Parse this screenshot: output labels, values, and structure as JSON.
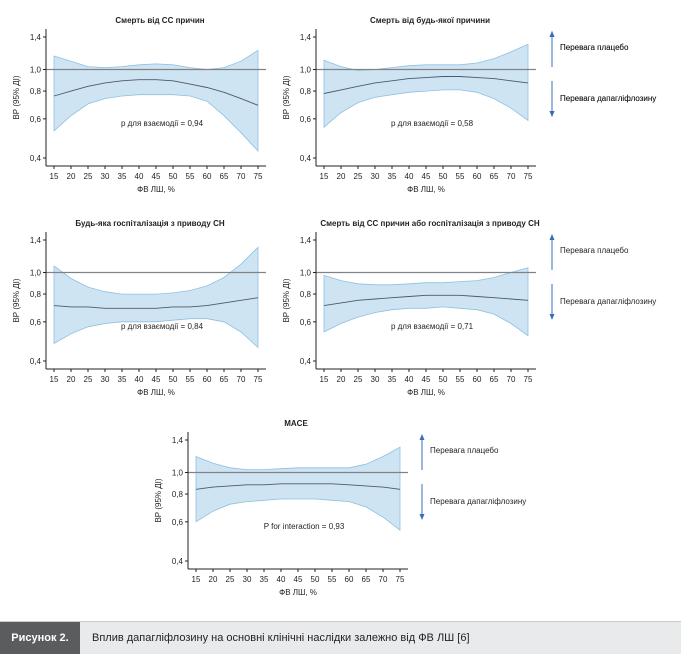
{
  "chart_data": [
    {
      "type": "line",
      "title": "Смерть від СС причин",
      "xlabel": "ФВ ЛШ, %",
      "ylabel": "ВР (95% ДІ)",
      "xlim": [
        15,
        75
      ],
      "ylim": [
        0.4,
        1.4
      ],
      "yscale": "log",
      "xticks": [
        "15",
        "20",
        "25",
        "30",
        "35",
        "40",
        "45",
        "50",
        "55",
        "60",
        "65",
        "70",
        "75"
      ],
      "yticks": [
        "0,4",
        "0,6",
        "0,8",
        "1,0",
        "1,4"
      ],
      "reference_line": 1.0,
      "annotation": "р для взаємодії = 0,94",
      "legend": {
        "up": "Перевага плацебо",
        "down": "Перевага дапагліфлозину"
      },
      "x": [
        15,
        20,
        25,
        30,
        35,
        40,
        45,
        50,
        55,
        60,
        65,
        70,
        75
      ],
      "estimate": [
        0.76,
        0.8,
        0.84,
        0.87,
        0.89,
        0.9,
        0.9,
        0.89,
        0.86,
        0.83,
        0.79,
        0.74,
        0.69
      ],
      "lower": [
        0.53,
        0.62,
        0.7,
        0.74,
        0.76,
        0.77,
        0.77,
        0.77,
        0.76,
        0.72,
        0.62,
        0.52,
        0.43
      ],
      "upper": [
        1.15,
        1.09,
        1.03,
        1.02,
        1.03,
        1.05,
        1.06,
        1.05,
        1.02,
        1.0,
        1.02,
        1.09,
        1.22
      ]
    },
    {
      "type": "line",
      "title": "Смерть від будь-якої причини",
      "xlabel": "ФВ ЛШ, %",
      "ylabel": "ВР (95% ДІ)",
      "xlim": [
        15,
        75
      ],
      "ylim": [
        0.4,
        1.4
      ],
      "yscale": "log",
      "xticks": [
        "15",
        "20",
        "25",
        "30",
        "35",
        "40",
        "45",
        "50",
        "55",
        "60",
        "65",
        "70",
        "75"
      ],
      "yticks": [
        "0,4",
        "0,6",
        "0,8",
        "1,0",
        "1,4"
      ],
      "reference_line": 1.0,
      "annotation": "р для взаємодії = 0,58",
      "legend": {
        "up": "Перевага плацебо",
        "down": "Перевага дапагліфлозину"
      },
      "x": [
        15,
        20,
        25,
        30,
        35,
        40,
        45,
        50,
        55,
        60,
        65,
        70,
        75
      ],
      "estimate": [
        0.78,
        0.81,
        0.84,
        0.87,
        0.89,
        0.91,
        0.92,
        0.93,
        0.93,
        0.92,
        0.91,
        0.89,
        0.87
      ],
      "lower": [
        0.55,
        0.64,
        0.71,
        0.75,
        0.77,
        0.79,
        0.8,
        0.81,
        0.81,
        0.79,
        0.74,
        0.67,
        0.59
      ],
      "upper": [
        1.1,
        1.03,
        0.99,
        1.0,
        1.02,
        1.04,
        1.05,
        1.05,
        1.05,
        1.07,
        1.12,
        1.2,
        1.3
      ]
    },
    {
      "type": "line",
      "title": "Будь-яка госпіталізація з приводу СН",
      "xlabel": "ФВ ЛШ, %",
      "ylabel": "ВР (95% ДІ)",
      "xlim": [
        15,
        75
      ],
      "ylim": [
        0.4,
        1.4
      ],
      "yscale": "log",
      "xticks": [
        "15",
        "20",
        "25",
        "30",
        "35",
        "40",
        "45",
        "50",
        "55",
        "60",
        "65",
        "70",
        "75"
      ],
      "yticks": [
        "0,4",
        "0,6",
        "0,8",
        "1,0",
        "1,4"
      ],
      "reference_line": 1.0,
      "annotation": "р для взаємодії = 0,84",
      "x": [
        15,
        20,
        25,
        30,
        35,
        40,
        45,
        50,
        55,
        60,
        65,
        70,
        75
      ],
      "estimate": [
        0.71,
        0.7,
        0.7,
        0.69,
        0.69,
        0.69,
        0.69,
        0.7,
        0.7,
        0.71,
        0.73,
        0.75,
        0.77
      ],
      "lower": [
        0.48,
        0.53,
        0.57,
        0.59,
        0.6,
        0.6,
        0.6,
        0.61,
        0.62,
        0.62,
        0.6,
        0.54,
        0.46
      ],
      "upper": [
        1.07,
        0.94,
        0.86,
        0.82,
        0.8,
        0.8,
        0.8,
        0.81,
        0.83,
        0.87,
        0.95,
        1.09,
        1.3
      ]
    },
    {
      "type": "line",
      "title": "Смерть від СС причин або госпіталізація з приводу СН",
      "xlabel": "ФВ ЛШ, %",
      "ylabel": "ВР (95% ДІ)",
      "xlim": [
        15,
        75
      ],
      "ylim": [
        0.4,
        1.4
      ],
      "yscale": "log",
      "xticks": [
        "15",
        "20",
        "25",
        "30",
        "35",
        "40",
        "45",
        "50",
        "55",
        "60",
        "65",
        "70",
        "75"
      ],
      "yticks": [
        "0,4",
        "0,6",
        "0,8",
        "1,0",
        "1,4"
      ],
      "reference_line": 1.0,
      "annotation": "р для взаємодії = 0,71",
      "legend": {
        "up": "Перевага плацебо",
        "down": "Перевага дапагліфлозину"
      },
      "x": [
        15,
        20,
        25,
        30,
        35,
        40,
        45,
        50,
        55,
        60,
        65,
        70,
        75
      ],
      "estimate": [
        0.71,
        0.73,
        0.75,
        0.76,
        0.77,
        0.78,
        0.79,
        0.79,
        0.79,
        0.78,
        0.77,
        0.76,
        0.75
      ],
      "lower": [
        0.54,
        0.59,
        0.63,
        0.66,
        0.68,
        0.69,
        0.69,
        0.7,
        0.69,
        0.68,
        0.65,
        0.59,
        0.52
      ],
      "upper": [
        0.97,
        0.92,
        0.89,
        0.88,
        0.88,
        0.89,
        0.9,
        0.9,
        0.91,
        0.92,
        0.95,
        1.0,
        1.05
      ]
    },
    {
      "type": "line",
      "title": "MACE",
      "xlabel": "ФВ ЛШ, %",
      "ylabel": "ВР (95% ДІ)",
      "xlim": [
        15,
        75
      ],
      "ylim": [
        0.4,
        1.4
      ],
      "yscale": "log",
      "xticks": [
        "15",
        "20",
        "25",
        "30",
        "35",
        "40",
        "45",
        "50",
        "55",
        "60",
        "65",
        "70",
        "75"
      ],
      "yticks": [
        "0,4",
        "0,6",
        "0,8",
        "1,0",
        "1,4"
      ],
      "reference_line": 1.0,
      "annotation": "P for interaction = 0,93",
      "legend": {
        "up": "Перевага плацебо",
        "down": "Перевага дапагліфлозину"
      },
      "x": [
        15,
        20,
        25,
        30,
        35,
        40,
        45,
        50,
        55,
        60,
        65,
        70,
        75
      ],
      "estimate": [
        0.84,
        0.86,
        0.87,
        0.88,
        0.88,
        0.89,
        0.89,
        0.89,
        0.89,
        0.88,
        0.87,
        0.86,
        0.84
      ],
      "lower": [
        0.6,
        0.67,
        0.72,
        0.74,
        0.75,
        0.76,
        0.76,
        0.76,
        0.75,
        0.74,
        0.7,
        0.63,
        0.55
      ],
      "upper": [
        1.18,
        1.1,
        1.05,
        1.03,
        1.03,
        1.04,
        1.05,
        1.05,
        1.05,
        1.05,
        1.09,
        1.18,
        1.3
      ]
    }
  ],
  "colors": {
    "band": "#cfe4f3",
    "band_edge": "#8ec0e2",
    "estimate_line": "#4b5a6b",
    "reference_line": "#808285",
    "arrow": "#3a6fb7"
  },
  "caption": {
    "label": "Рисунок 2.",
    "text": "Вплив дапагліфлозину на основні клінічні наслідки залежно від ФВ ЛШ [6]"
  }
}
